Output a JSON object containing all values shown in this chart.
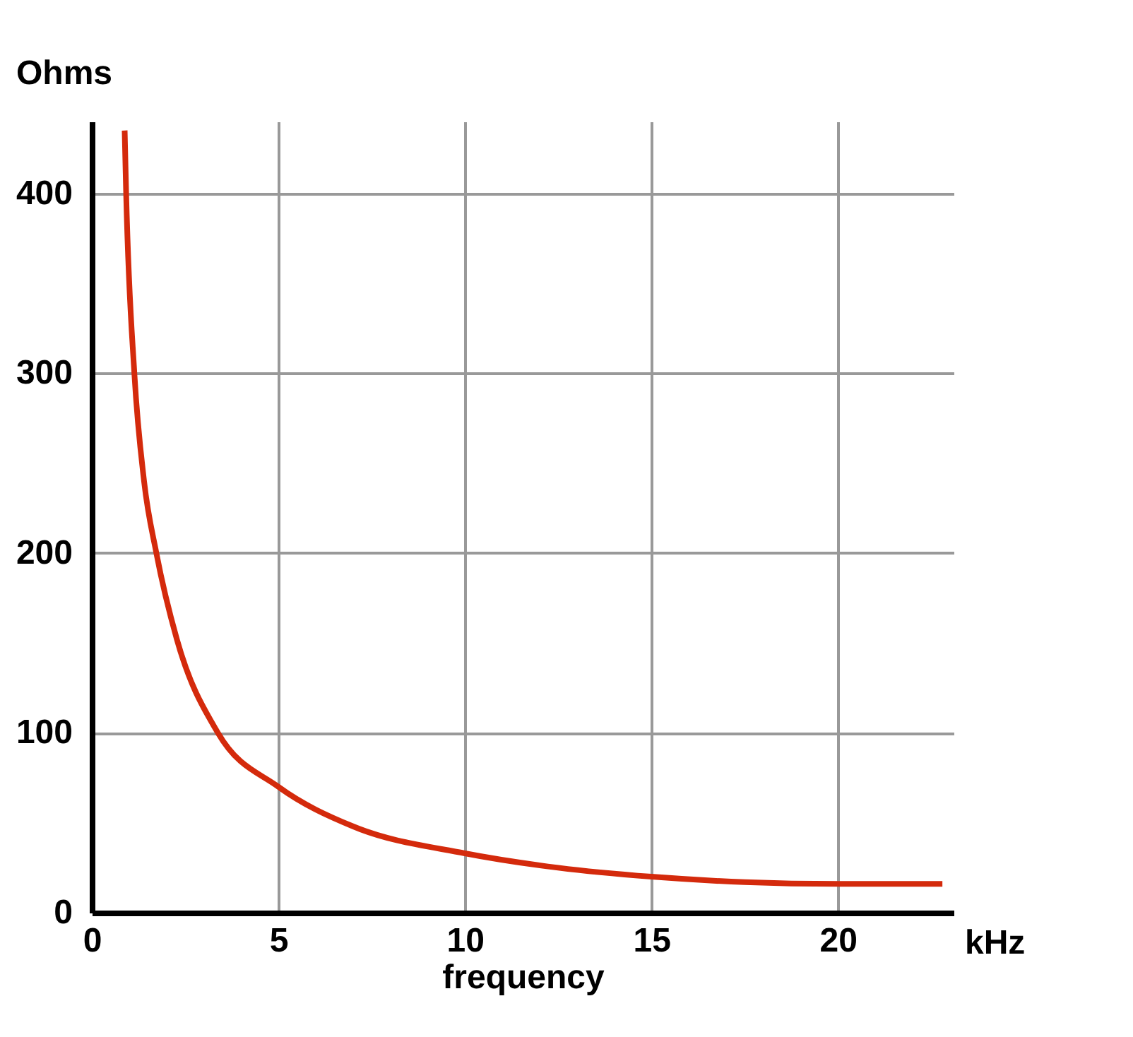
{
  "chart_data": {
    "type": "line",
    "xlabel": "frequency",
    "ylabel": "Ohms",
    "annotations": [
      "kHz"
    ],
    "x": [
      0.88,
      0.92,
      1.14,
      1.4,
      1.73,
      2.28,
      3.38,
      5,
      7,
      10,
      12.5,
      15,
      17.5,
      20,
      22.8
    ],
    "series": [
      {
        "color": "#d42a0c",
        "values": [
          435,
          400,
          300,
          240,
          200,
          152,
          100,
          70,
          48,
          33,
          25,
          20,
          17,
          16,
          16
        ]
      }
    ],
    "xlim": [
      0,
      23.1
    ],
    "ylim": [
      0,
      440
    ],
    "xticks": [
      0,
      5,
      10,
      15,
      20
    ],
    "yticks": [
      0,
      100,
      200,
      300,
      400
    ],
    "grid": true,
    "marker": "none",
    "line_style": "solid"
  }
}
